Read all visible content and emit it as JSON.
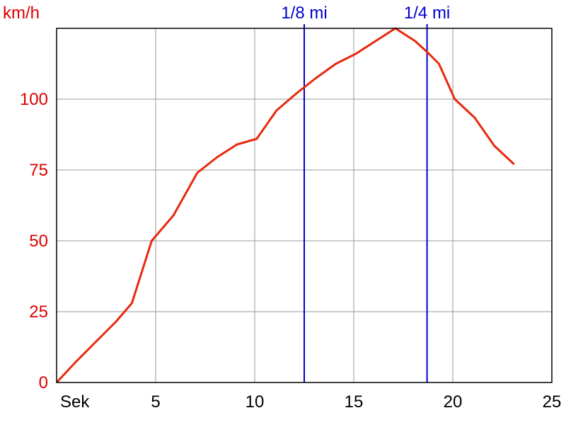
{
  "chart_data": {
    "type": "line",
    "ylabel": "km/h",
    "xlabel": "Sek",
    "xlim": [
      0,
      25
    ],
    "ylim": [
      0,
      125
    ],
    "xticks": [
      5,
      10,
      15,
      20,
      25
    ],
    "yticks": [
      0,
      25,
      50,
      75,
      100
    ],
    "grid": true,
    "series": [
      {
        "color": "#e8290f",
        "x": [
          0,
          1,
          2,
          3,
          3.8,
          4.8,
          5.9,
          7.1,
          8.1,
          9.1,
          10.1,
          11.1,
          12.1,
          13.1,
          14.1,
          15.1,
          16.1,
          17.1,
          18.1,
          18.8,
          19.3,
          20.1,
          21.1,
          22.1,
          23.1
        ],
        "y": [
          0,
          7.5,
          14.5,
          21.5,
          28,
          50,
          59,
          74,
          79.5,
          84,
          86,
          96,
          102,
          107.5,
          112.5,
          116,
          120.5,
          125,
          120.5,
          116,
          112.5,
          100,
          93.5,
          83.5,
          77
        ]
      }
    ],
    "markers": [
      {
        "label": "1/8 mi",
        "x": 12.5,
        "color": "#0000cc"
      },
      {
        "label": "1/4 mi",
        "x": 18.7,
        "color": "#0000cc"
      }
    ],
    "colors": {
      "grid": "#999999",
      "axis": "#000000",
      "ytick": "#dd0000",
      "xtick": "#000000"
    }
  }
}
